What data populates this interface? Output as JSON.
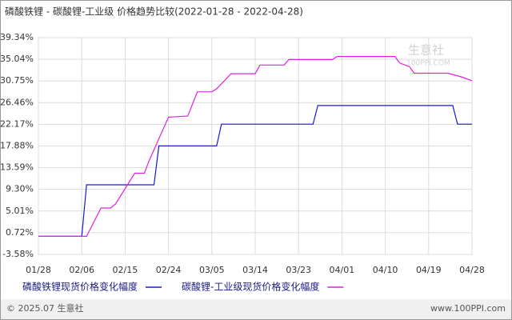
{
  "chart_data": {
    "type": "line",
    "title": "磷酸铁锂 - 碳酸锂-工业级 价格趋势比较(2022-01-28 - 2022-04-28)",
    "xlim": [
      "01/28",
      "04/28"
    ],
    "xticks": [
      "01/28",
      "02/06",
      "02/15",
      "02/24",
      "03/05",
      "03/14",
      "03/23",
      "04/01",
      "04/10",
      "04/19",
      "04/28"
    ],
    "ylim": [
      -3.58,
      39.34
    ],
    "yticks": [
      {
        "value": -3.58,
        "label": "-3.58%"
      },
      {
        "value": 0.72,
        "label": "0.72%"
      },
      {
        "value": 5.01,
        "label": "5.01%"
      },
      {
        "value": 9.3,
        "label": "9.30%"
      },
      {
        "value": 13.59,
        "label": "13.59%"
      },
      {
        "value": 17.88,
        "label": "17.88%"
      },
      {
        "value": 22.17,
        "label": "22.17%"
      },
      {
        "value": 26.46,
        "label": "26.46%"
      },
      {
        "value": 30.75,
        "label": "30.75%"
      },
      {
        "value": 35.04,
        "label": "35.04%"
      },
      {
        "value": 39.34,
        "label": "39.34%"
      }
    ],
    "grid": true,
    "series": [
      {
        "name": "磷酸铁锂现货价格变化幅度",
        "color": "#1a1acc",
        "x": [
          "01/28",
          "02/06",
          "02/07",
          "02/21",
          "02/22",
          "03/06",
          "03/07",
          "03/26",
          "03/27",
          "04/24",
          "04/25",
          "04/28"
        ],
        "values": [
          0,
          0,
          10.2,
          10.2,
          17.9,
          17.9,
          22.2,
          22.2,
          25.9,
          25.9,
          22.2,
          22.2
        ]
      },
      {
        "name": "碳酸锂-工业级现货价格变化幅度",
        "color": "#e020e0",
        "x": [
          "01/28",
          "02/06",
          "02/07",
          "02/10",
          "02/12",
          "02/13",
          "02/17",
          "02/19",
          "02/20",
          "02/24",
          "02/28",
          "03/02",
          "03/05",
          "03/06",
          "03/09",
          "03/14",
          "03/15",
          "03/20",
          "03/21",
          "03/30",
          "03/31",
          "04/12",
          "04/13",
          "04/15",
          "04/16",
          "04/23",
          "04/26",
          "04/28"
        ],
        "values": [
          0,
          0,
          0,
          5.6,
          5.6,
          6.4,
          12.5,
          12.5,
          15,
          23.6,
          23.8,
          28.6,
          28.6,
          29.2,
          32.2,
          32.2,
          33.9,
          33.9,
          35.0,
          35.0,
          35.6,
          35.6,
          34.3,
          33.6,
          32.3,
          32.3,
          31.5,
          30.8
        ]
      }
    ],
    "watermark": [
      "生意社",
      "100PPI.COM"
    ],
    "footer": {
      "left": "© 2025.07 生意社",
      "right": "www.100PPI.com"
    }
  }
}
